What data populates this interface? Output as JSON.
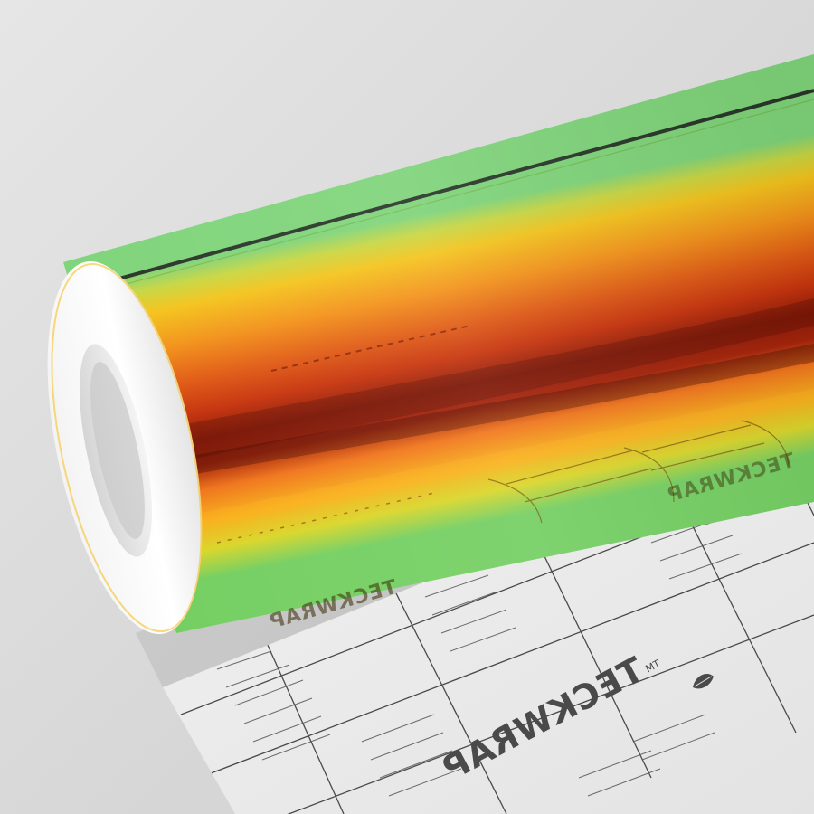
{
  "product": {
    "logo_text": "TECKWRAP",
    "logo_trademark": "TM",
    "film_colors": {
      "green": "#6ed06a",
      "yellow": "#f2c21a",
      "orange": "#f07414",
      "red": "#b8240a",
      "dark_red": "#6a1204"
    },
    "backing_paper_color": "#ececec",
    "backdrop_color": "#dcdcdc"
  }
}
